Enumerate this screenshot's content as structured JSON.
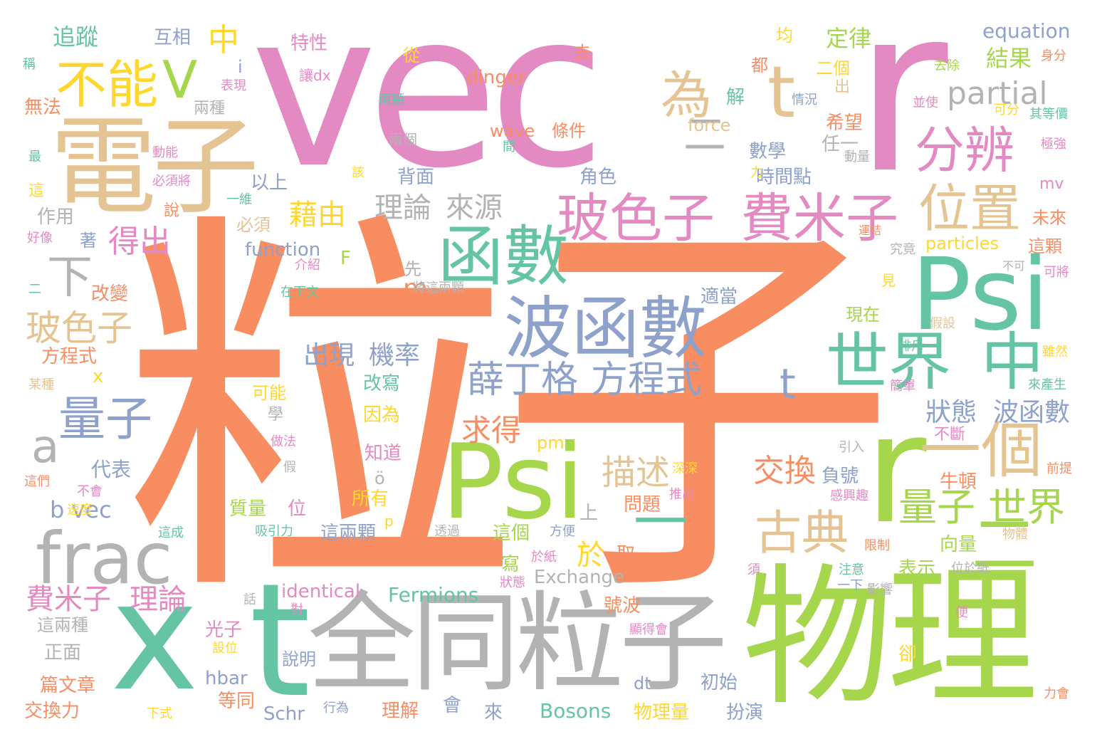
{
  "title": "",
  "palette": {
    "pink": "#e48ac3",
    "orange": "#f98d62",
    "green": "#a5d64b",
    "teal": "#65c4a3",
    "blue": "#8ea1cb",
    "yellow": "#ffd72f",
    "tan": "#e5c494",
    "gray": "#b3b3b3"
  },
  "words": [
    {
      "text": "vec",
      "color": "pink"
    },
    {
      "text": "r",
      "color": "pink"
    },
    {
      "text": "粒子",
      "color": "orange"
    },
    {
      "text": "物理",
      "color": "green"
    },
    {
      "text": "全同粒子",
      "color": "gray"
    },
    {
      "text": "x",
      "color": "teal"
    },
    {
      "text": "t",
      "color": "teal"
    },
    {
      "text": "電子",
      "color": "tan"
    },
    {
      "text": "Psi",
      "color": "green"
    },
    {
      "text": "Psi",
      "color": "teal"
    },
    {
      "text": "r",
      "color": "green"
    },
    {
      "text": "frac",
      "color": "gray"
    },
    {
      "text": "波函數",
      "color": "blue"
    },
    {
      "text": "函數",
      "color": "teal"
    },
    {
      "text": "世界",
      "color": "teal"
    },
    {
      "text": "中",
      "color": "teal"
    },
    {
      "text": "一個",
      "color": "tan"
    },
    {
      "text": "二",
      "color": "green"
    },
    {
      "text": "一",
      "color": "teal"
    },
    {
      "text": "不能",
      "color": "yellow"
    },
    {
      "text": "V",
      "color": "green"
    },
    {
      "text": "t",
      "color": "tan"
    },
    {
      "text": "為",
      "color": "tan"
    },
    {
      "text": "二",
      "color": "gray"
    },
    {
      "text": "分辨",
      "color": "pink"
    },
    {
      "text": "位置",
      "color": "tan"
    },
    {
      "text": "玻色子",
      "color": "pink"
    },
    {
      "text": "費米子",
      "color": "pink"
    },
    {
      "text": "partial",
      "color": "gray"
    },
    {
      "text": "古典",
      "color": "tan"
    },
    {
      "text": "量子",
      "color": "blue"
    },
    {
      "text": "量子",
      "color": "green"
    },
    {
      "text": "世界",
      "color": "green"
    },
    {
      "text": "薛丁格",
      "color": "blue"
    },
    {
      "text": "方程式",
      "color": "blue"
    },
    {
      "text": "t",
      "color": "blue"
    },
    {
      "text": "玻色子",
      "color": "tan"
    },
    {
      "text": "a",
      "color": "gray"
    },
    {
      "text": "下",
      "color": "gray"
    },
    {
      "text": "費米子",
      "color": "pink"
    },
    {
      "text": "理論",
      "color": "pink"
    },
    {
      "text": "描述",
      "color": "tan"
    },
    {
      "text": "交換",
      "color": "orange"
    },
    {
      "text": "於",
      "color": "yellow"
    },
    {
      "text": "求得",
      "color": "orange"
    },
    {
      "text": "藉由",
      "color": "yellow"
    },
    {
      "text": "得出",
      "color": "pink"
    },
    {
      "text": "狀態",
      "color": "blue"
    },
    {
      "text": "波函數",
      "color": "blue"
    },
    {
      "text": "理論",
      "color": "gray"
    },
    {
      "text": "來源",
      "color": "gray"
    },
    {
      "text": "出現",
      "color": "blue"
    },
    {
      "text": "機率",
      "color": "blue"
    },
    {
      "text": "中",
      "color": "yellow"
    },
    {
      "text": "追蹤",
      "color": "teal"
    },
    {
      "text": "equation",
      "color": "blue"
    },
    {
      "text": "定律",
      "color": "green"
    },
    {
      "text": "結果",
      "color": "green"
    },
    {
      "text": "m",
      "color": "orange"
    },
    {
      "text": "b vec",
      "color": "blue"
    },
    {
      "text": "代表",
      "color": "blue"
    },
    {
      "text": "Bosons",
      "color": "teal"
    },
    {
      "text": "Fermions",
      "color": "teal"
    },
    {
      "text": "Exchange",
      "color": "gray"
    },
    {
      "text": "identical",
      "color": "pink"
    },
    {
      "text": "function",
      "color": "blue"
    },
    {
      "text": "particles",
      "color": "yellow"
    },
    {
      "text": "dinger",
      "color": "orange"
    },
    {
      "text": "wave",
      "color": "orange"
    },
    {
      "text": "force",
      "color": "tan"
    },
    {
      "text": "hbar",
      "color": "blue"
    },
    {
      "text": "Schr",
      "color": "blue"
    },
    {
      "text": "mv",
      "color": "pink"
    },
    {
      "text": "pm",
      "color": "yellow"
    },
    {
      "text": "dt",
      "color": "blue"
    },
    {
      "text": "F",
      "color": "green"
    },
    {
      "text": "互相",
      "color": "blue"
    },
    {
      "text": "特性",
      "color": "pink"
    },
    {
      "text": "去",
      "color": "orange"
    },
    {
      "text": "均",
      "color": "yellow"
    },
    {
      "text": "都",
      "color": "orange"
    },
    {
      "text": "二個",
      "color": "yellow"
    },
    {
      "text": "身分",
      "color": "orange"
    },
    {
      "text": "去除",
      "color": "green"
    },
    {
      "text": "從",
      "color": "yellow"
    },
    {
      "text": "讓dx",
      "color": "pink"
    },
    {
      "text": "表現",
      "color": "pink"
    },
    {
      "text": "兩種",
      "color": "gray"
    },
    {
      "text": "無法",
      "color": "orange"
    },
    {
      "text": "稱",
      "color": "teal"
    },
    {
      "text": "i",
      "color": "blue"
    },
    {
      "text": "解",
      "color": "teal"
    },
    {
      "text": "情況",
      "color": "blue"
    },
    {
      "text": "出",
      "color": "tan"
    },
    {
      "text": "兩顆",
      "color": "teal"
    },
    {
      "text": "並使",
      "color": "pink"
    },
    {
      "text": "可分",
      "color": "yellow"
    },
    {
      "text": "其等價",
      "color": "teal"
    },
    {
      "text": "條件",
      "color": "orange"
    },
    {
      "text": "希望",
      "color": "orange"
    },
    {
      "text": "任一",
      "color": "gray"
    },
    {
      "text": "動量",
      "color": "gray"
    },
    {
      "text": "極強",
      "color": "pink"
    },
    {
      "text": "兩個",
      "color": "gray"
    },
    {
      "text": "最",
      "color": "teal"
    },
    {
      "text": "動能",
      "color": "pink"
    },
    {
      "text": "間",
      "color": "teal"
    },
    {
      "text": "數學",
      "color": "blue"
    },
    {
      "text": "時間點",
      "color": "blue"
    },
    {
      "text": "背面",
      "color": "blue"
    },
    {
      "text": "角色",
      "color": "blue"
    },
    {
      "text": "以上",
      "color": "blue"
    },
    {
      "text": "必須將",
      "color": "pink"
    },
    {
      "text": "這",
      "color": "yellow"
    },
    {
      "text": "一維",
      "color": "teal"
    },
    {
      "text": "說",
      "color": "orange"
    },
    {
      "text": "作用",
      "color": "gray"
    },
    {
      "text": "必須",
      "color": "tan"
    },
    {
      "text": "著",
      "color": "blue"
    },
    {
      "text": "好像",
      "color": "pink"
    },
    {
      "text": "未來",
      "color": "orange"
    },
    {
      "text": "運結",
      "color": "orange"
    },
    {
      "text": "究竟",
      "color": "gray"
    },
    {
      "text": "這顆",
      "color": "orange"
    },
    {
      "text": "先",
      "color": "gray"
    },
    {
      "text": "介紹",
      "color": "pink"
    },
    {
      "text": "將這兩顆",
      "color": "gray"
    },
    {
      "text": "在下文",
      "color": "teal"
    },
    {
      "text": "改變",
      "color": "orange"
    },
    {
      "text": "二",
      "color": "teal"
    },
    {
      "text": "不可",
      "color": "gray"
    },
    {
      "text": "可將",
      "color": "pink"
    },
    {
      "text": "見",
      "color": "yellow"
    },
    {
      "text": "適當",
      "color": "blue"
    },
    {
      "text": "現在",
      "color": "green"
    },
    {
      "text": "假設",
      "color": "tan"
    },
    {
      "text": "排斥",
      "color": "teal"
    },
    {
      "text": "雖然",
      "color": "yellow"
    },
    {
      "text": "方程式",
      "color": "orange"
    },
    {
      "text": "x",
      "color": "yellow"
    },
    {
      "text": "某種",
      "color": "tan"
    },
    {
      "text": "改寫",
      "color": "teal"
    },
    {
      "text": "可能",
      "color": "yellow"
    },
    {
      "text": "因為",
      "color": "yellow"
    },
    {
      "text": "學",
      "color": "gray"
    },
    {
      "text": "簡單",
      "color": "pink"
    },
    {
      "text": "來產生",
      "color": "teal"
    },
    {
      "text": "不斷",
      "color": "pink"
    },
    {
      "text": "做法",
      "color": "pink"
    },
    {
      "text": "知道",
      "color": "pink"
    },
    {
      "text": "引入",
      "color": "gray"
    },
    {
      "text": "前提",
      "color": "orange"
    },
    {
      "text": "這們",
      "color": "orange"
    },
    {
      "text": "不會",
      "color": "pink"
    },
    {
      "text": "假",
      "color": "gray"
    },
    {
      "text": "深深",
      "color": "yellow"
    },
    {
      "text": "ö",
      "color": "gray"
    },
    {
      "text": "負號",
      "color": "blue"
    },
    {
      "text": "牛頓",
      "color": "orange"
    },
    {
      "text": "感興趣",
      "color": "pink"
    },
    {
      "text": "推出",
      "color": "pink"
    },
    {
      "text": "所有",
      "color": "yellow"
    },
    {
      "text": "上",
      "color": "gray"
    },
    {
      "text": "問題",
      "color": "orange"
    },
    {
      "text": "速度",
      "color": "yellow"
    },
    {
      "text": "質量",
      "color": "green"
    },
    {
      "text": "位",
      "color": "pink"
    },
    {
      "text": "吸引力",
      "color": "teal"
    },
    {
      "text": "p",
      "color": "yellow"
    },
    {
      "text": "這兩顆",
      "color": "blue"
    },
    {
      "text": "透過",
      "color": "gray"
    },
    {
      "text": "這成",
      "color": "teal"
    },
    {
      "text": "這個",
      "color": "green"
    },
    {
      "text": "方便",
      "color": "blue"
    },
    {
      "text": "取",
      "color": "orange"
    },
    {
      "text": "向量",
      "color": "green"
    },
    {
      "text": "物體",
      "color": "tan"
    },
    {
      "text": "限制",
      "color": "orange"
    },
    {
      "text": "寫",
      "color": "green"
    },
    {
      "text": "於紙",
      "color": "pink"
    },
    {
      "text": "表示",
      "color": "green"
    },
    {
      "text": "位於紙",
      "color": "gray"
    },
    {
      "text": "狀態",
      "color": "pink"
    },
    {
      "text": "注意",
      "color": "teal"
    },
    {
      "text": "須",
      "color": "pink"
    },
    {
      "text": "一下",
      "color": "blue"
    },
    {
      "text": "影響",
      "color": "gray"
    },
    {
      "text": "話",
      "color": "gray"
    },
    {
      "text": "對",
      "color": "pink"
    },
    {
      "text": "號波",
      "color": "orange"
    },
    {
      "text": "卻",
      "color": "yellow"
    },
    {
      "text": "便",
      "color": "pink"
    },
    {
      "text": "光子",
      "color": "pink"
    },
    {
      "text": "這兩種",
      "color": "gray"
    },
    {
      "text": "設位",
      "color": "yellow"
    },
    {
      "text": "顯得會",
      "color": "pink"
    },
    {
      "text": "正面",
      "color": "gray"
    },
    {
      "text": "說明",
      "color": "blue"
    },
    {
      "text": "初始",
      "color": "blue"
    },
    {
      "text": "篇文章",
      "color": "orange"
    },
    {
      "text": "等同",
      "color": "orange"
    },
    {
      "text": "會",
      "color": "blue"
    },
    {
      "text": "交換力",
      "color": "orange"
    },
    {
      "text": "行為",
      "color": "blue"
    },
    {
      "text": "理解",
      "color": "orange"
    },
    {
      "text": "來",
      "color": "blue"
    },
    {
      "text": "物理量",
      "color": "yellow"
    },
    {
      "text": "扮演",
      "color": "blue"
    },
    {
      "text": "力會",
      "color": "orange"
    },
    {
      "text": "下式",
      "color": "yellow"
    },
    {
      "text": "力",
      "color": "yellow"
    },
    {
      "text": "該",
      "color": "yellow"
    }
  ]
}
